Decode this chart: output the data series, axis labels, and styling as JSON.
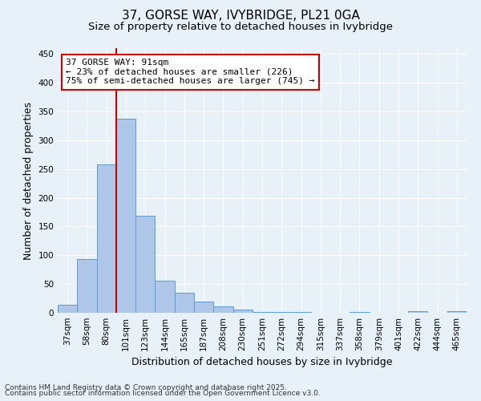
{
  "title": "37, GORSE WAY, IVYBRIDGE, PL21 0GA",
  "subtitle": "Size of property relative to detached houses in Ivybridge",
  "xlabel": "Distribution of detached houses by size in Ivybridge",
  "ylabel": "Number of detached properties",
  "bar_values": [
    14,
    94,
    258,
    337,
    169,
    56,
    35,
    19,
    11,
    6,
    2,
    1,
    1,
    0,
    0,
    1,
    0,
    0,
    3,
    0,
    3
  ],
  "bin_labels": [
    "37sqm",
    "58sqm",
    "80sqm",
    "101sqm",
    "123sqm",
    "144sqm",
    "165sqm",
    "187sqm",
    "208sqm",
    "230sqm",
    "251sqm",
    "272sqm",
    "294sqm",
    "315sqm",
    "337sqm",
    "358sqm",
    "379sqm",
    "401sqm",
    "422sqm",
    "444sqm",
    "465sqm"
  ],
  "bar_color": "#aec6e8",
  "bar_edge_color": "#5b9bd5",
  "background_color": "#e8f0f8",
  "grid_color": "#ffffff",
  "vline_color": "#cc0000",
  "vline_pos": 2.5,
  "annotation_text": "37 GORSE WAY: 91sqm\n← 23% of detached houses are smaller (226)\n75% of semi-detached houses are larger (745) →",
  "annotation_box_color": "#ffffff",
  "annotation_box_edge": "#cc0000",
  "ylim": [
    0,
    460
  ],
  "yticks": [
    0,
    50,
    100,
    150,
    200,
    250,
    300,
    350,
    400,
    450
  ],
  "footer_line1": "Contains HM Land Registry data © Crown copyright and database right 2025.",
  "footer_line2": "Contains public sector information licensed under the Open Government Licence v3.0.",
  "title_fontsize": 11,
  "subtitle_fontsize": 9.5,
  "axis_label_fontsize": 9,
  "tick_fontsize": 7.5,
  "annotation_fontsize": 8,
  "footer_fontsize": 6.5
}
